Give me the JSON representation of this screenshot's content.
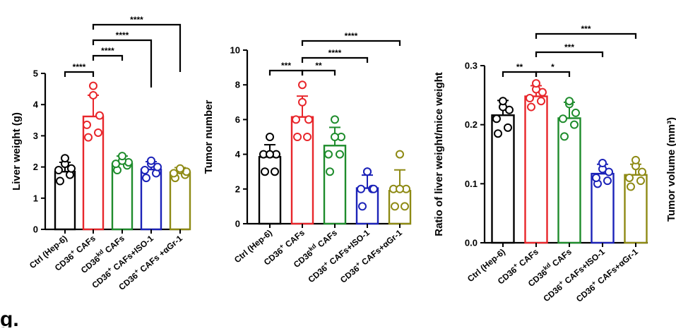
{
  "panel_letter": "g.",
  "chart_data": [
    {
      "type": "bar",
      "title": "",
      "xlabel": "",
      "ylabel": "Liver weight (g)",
      "ylim": [
        0,
        5
      ],
      "yticks": [
        0,
        1,
        2,
        3,
        4,
        5
      ],
      "categories": [
        {
          "pre": "Ctrl (Hep-6)",
          "sup": "",
          "post": ""
        },
        {
          "pre": "CD36",
          "sup": "+",
          "post": " CAFs"
        },
        {
          "pre": "CD36",
          "sup": "kd",
          "post": " CAFs"
        },
        {
          "pre": "CD36",
          "sup": "+",
          "post": " CAFs+ISO-1"
        },
        {
          "pre": "CD36",
          "sup": "+",
          "post": " CAFs +αGr-1"
        }
      ],
      "colors": [
        "#000000",
        "#e8262b",
        "#1e8c2c",
        "#1b22b8",
        "#8e8a14"
      ],
      "means": [
        1.85,
        3.62,
        2.1,
        1.92,
        1.83
      ],
      "errors": [
        0.3,
        0.68,
        0.25,
        0.25,
        0.15
      ],
      "points": [
        [
          1.55,
          1.75,
          1.9,
          1.95,
          2.1,
          2.28
        ],
        [
          2.95,
          3.1,
          3.35,
          3.65,
          4.3,
          4.6
        ],
        [
          1.9,
          2.05,
          2.1,
          2.15,
          2.2,
          2.35
        ],
        [
          1.65,
          1.8,
          1.9,
          2.0,
          2.1,
          2.2
        ],
        [
          1.65,
          1.75,
          1.8,
          1.85,
          1.9,
          1.95
        ]
      ],
      "comparisons": [
        {
          "from": 0,
          "to": 1,
          "label": "****"
        },
        {
          "from": 1,
          "to": 2,
          "label": "****"
        },
        {
          "from": 1,
          "to": 3,
          "label": "****"
        },
        {
          "from": 1,
          "to": 4,
          "label": "****"
        }
      ]
    },
    {
      "type": "bar",
      "title": "",
      "xlabel": "",
      "ylabel": "Tumor number",
      "ylim": [
        0,
        10
      ],
      "yticks": [
        0,
        2,
        4,
        6,
        8,
        10
      ],
      "categories": [
        {
          "pre": "Ctrl (Hep-6)",
          "sup": "",
          "post": ""
        },
        {
          "pre": "CD36",
          "sup": "+",
          "post": " CAFs"
        },
        {
          "pre": "CD36",
          "sup": "kd",
          "post": " CAFs"
        },
        {
          "pre": "CD36",
          "sup": "+",
          "post": " CAFs+ISO-1"
        },
        {
          "pre": "CD36",
          "sup": "+",
          "post": " CAFs+αGr-1"
        }
      ],
      "colors": [
        "#000000",
        "#e8262b",
        "#1e8c2c",
        "#1b22b8",
        "#8e8a14"
      ],
      "means": [
        3.85,
        6.15,
        4.5,
        2.05,
        1.9
      ],
      "errors": [
        0.7,
        1.2,
        1.05,
        0.75,
        1.2
      ],
      "points": [
        [
          3,
          3,
          4,
          4,
          4,
          5
        ],
        [
          5,
          5,
          6,
          6,
          7,
          8
        ],
        [
          3,
          4,
          4,
          5,
          5,
          6
        ],
        [
          1,
          2,
          2,
          2,
          3,
          3
        ],
        [
          1,
          1,
          2,
          2,
          2,
          4
        ]
      ],
      "comparisons": [
        {
          "from": 0,
          "to": 1,
          "label": "***"
        },
        {
          "from": 1,
          "to": 2,
          "label": "**"
        },
        {
          "from": 1,
          "to": 3,
          "label": "****"
        },
        {
          "from": 1,
          "to": 4,
          "label": "****"
        }
      ]
    },
    {
      "type": "bar",
      "title": "",
      "xlabel": "",
      "ylabel": "Ratio of liver weight/mice weight",
      "ylim": [
        0,
        0.3
      ],
      "yticks": [
        0.0,
        0.1,
        0.2,
        0.3
      ],
      "tick_decimals": 1,
      "categories": [
        {
          "pre": "Ctrl (Hep-6)",
          "sup": "",
          "post": ""
        },
        {
          "pre": "CD36",
          "sup": "+",
          "post": " CAFs"
        },
        {
          "pre": "CD36",
          "sup": "kd",
          "post": " CAFs"
        },
        {
          "pre": "CD36",
          "sup": "+",
          "post": " CAFs+ISO-1"
        },
        {
          "pre": "CD36",
          "sup": "+",
          "post": " CAFs+αGr-1"
        }
      ],
      "colors": [
        "#000000",
        "#e8262b",
        "#1e8c2c",
        "#1b22b8",
        "#8e8a14"
      ],
      "means": [
        0.216,
        0.248,
        0.211,
        0.117,
        0.115
      ],
      "errors": [
        0.025,
        0.018,
        0.027,
        0.016,
        0.018
      ],
      "points": [
        [
          0.185,
          0.195,
          0.21,
          0.225,
          0.23,
          0.24
        ],
        [
          0.23,
          0.24,
          0.245,
          0.255,
          0.26,
          0.27
        ],
        [
          0.18,
          0.2,
          0.21,
          0.22,
          0.235,
          0.24
        ],
        [
          0.1,
          0.105,
          0.11,
          0.12,
          0.125,
          0.135
        ],
        [
          0.095,
          0.105,
          0.11,
          0.12,
          0.13,
          0.14
        ]
      ],
      "comparisons": [
        {
          "from": 0,
          "to": 1,
          "label": "**"
        },
        {
          "from": 1,
          "to": 2,
          "label": "*"
        },
        {
          "from": 1,
          "to": 3,
          "label": "***"
        },
        {
          "from": 1,
          "to": 4,
          "label": "***"
        }
      ]
    }
  ],
  "partial_axis_label": "Tumor volume (mm³)"
}
